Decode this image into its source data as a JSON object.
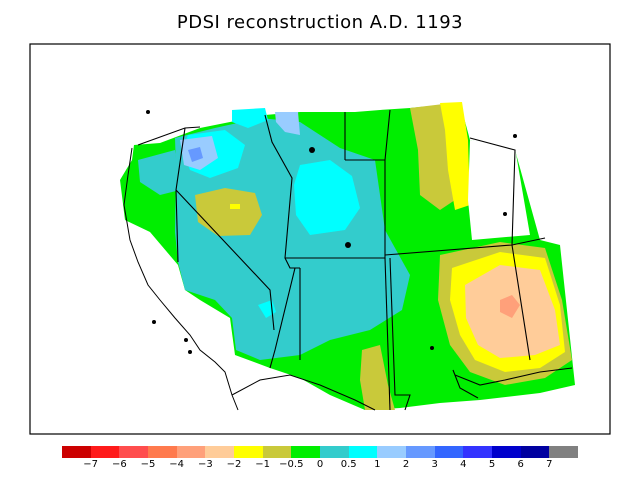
{
  "title": "PDSI reconstruction A.D. 1193",
  "colorbar": {
    "colors": [
      "#cc0000",
      "#ff1a1a",
      "#ff4d4d",
      "#ff7a4d",
      "#ffa07a",
      "#ffcc99",
      "#ffff00",
      "#c9c93a",
      "#00ee00",
      "#33cccc",
      "#00ffff",
      "#99ccff",
      "#6699ff",
      "#3366ff",
      "#3333ff",
      "#0000cc",
      "#0000a0",
      "#808080"
    ],
    "labels": [
      "−7",
      "−6",
      "−5",
      "−4",
      "−3",
      "−2",
      "−1",
      "−0.5",
      "0",
      "0.5",
      "1",
      "2",
      "3",
      "4",
      "5",
      "6",
      "7"
    ]
  }
}
